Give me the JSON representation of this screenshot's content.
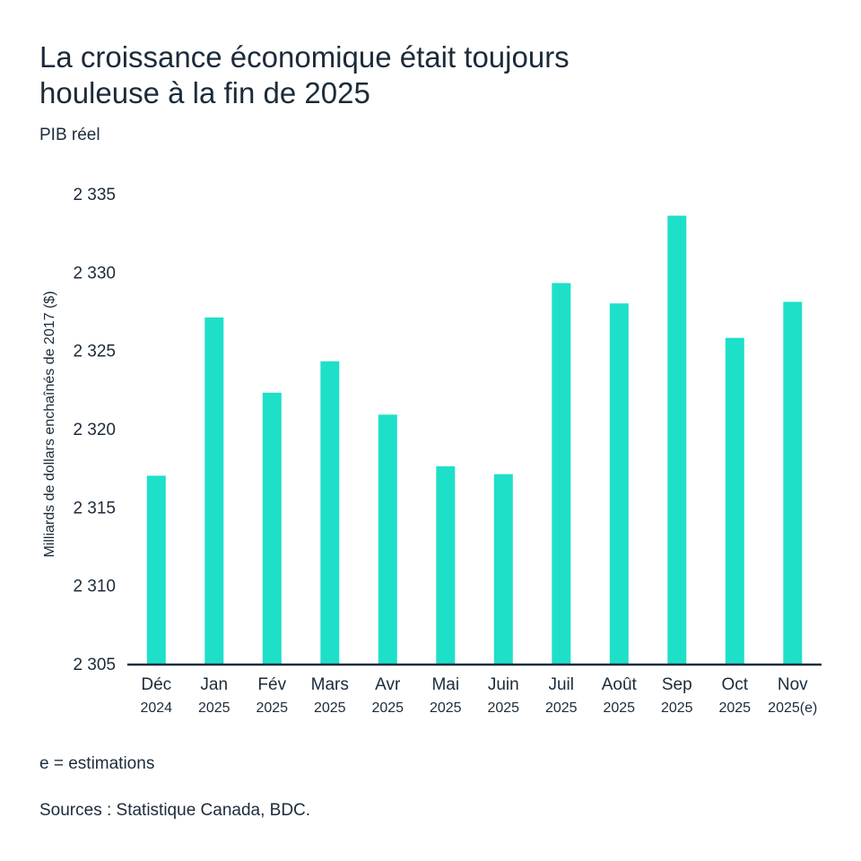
{
  "header": {
    "title_line1": "La croissance économique était toujours",
    "title_line2": "houleuse à la fin de 2025",
    "subtitle": "PIB réel"
  },
  "footer": {
    "note": "e = estimations",
    "sources": "Sources : Statistique Canada, BDC."
  },
  "colors": {
    "bar": "#1ee0c9",
    "axis": "#1c2b3a"
  },
  "chart_data": {
    "type": "bar",
    "title": "La croissance économique était toujours houleuse à la fin de 2025",
    "subtitle": "PIB réel",
    "xlabel": "",
    "ylabel": "Milliards de dollars enchaînés de 2017 ($)",
    "ylim": [
      2305,
      2335
    ],
    "yticks": [
      2305,
      2310,
      2315,
      2320,
      2325,
      2330,
      2335
    ],
    "ytick_labels": [
      "2 305",
      "2 310",
      "2 315",
      "2 320",
      "2 325",
      "2 330",
      "2 335"
    ],
    "grid": false,
    "categories": [
      [
        "Déc",
        "2024"
      ],
      [
        "Jan",
        "2025"
      ],
      [
        "Fév",
        "2025"
      ],
      [
        "Mars",
        "2025"
      ],
      [
        "Avr",
        "2025"
      ],
      [
        "Mai",
        "2025"
      ],
      [
        "Juin",
        "2025"
      ],
      [
        "Juil",
        "2025"
      ],
      [
        "Août",
        "2025"
      ],
      [
        "Sep",
        "2025"
      ],
      [
        "Oct",
        "2025"
      ],
      [
        "Nov",
        "2025(e)"
      ]
    ],
    "values": [
      2317.0,
      2327.1,
      2322.3,
      2324.3,
      2320.9,
      2317.6,
      2317.1,
      2329.3,
      2328.0,
      2333.6,
      2325.8,
      2328.1
    ]
  }
}
